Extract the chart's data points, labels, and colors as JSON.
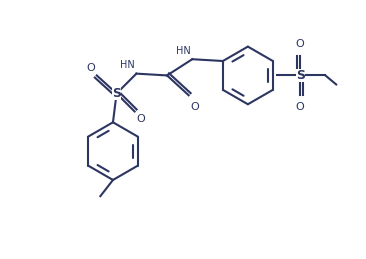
{
  "line_color": "#2d3561",
  "bg_color": "#ffffff",
  "line_width": 1.5,
  "figsize": [
    3.66,
    2.59
  ],
  "dpi": 100,
  "xlim": [
    0,
    10
  ],
  "ylim": [
    0,
    7
  ]
}
